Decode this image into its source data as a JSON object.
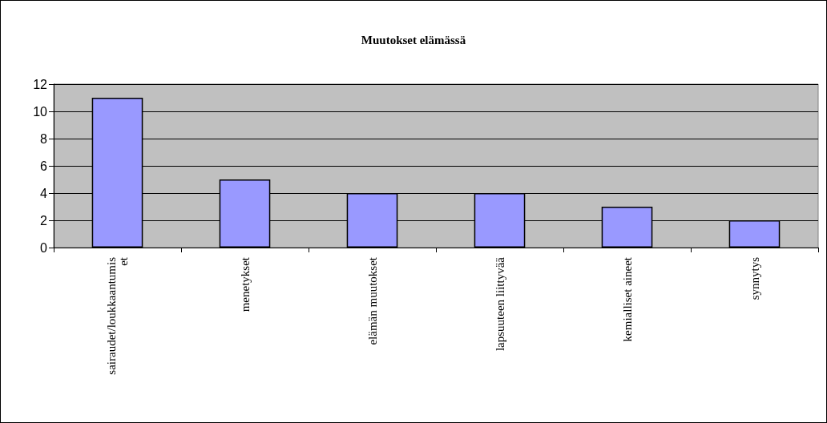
{
  "chart_data": {
    "type": "bar",
    "title": "Muutokset elämässä",
    "categories": [
      "sairaudet/loukkaantumiset",
      "menetykset",
      "elämän muutokset",
      "lapsuuteen liittyvää",
      "kemialliset aineet",
      "synnytys"
    ],
    "values": [
      11,
      5,
      4,
      4,
      3,
      2
    ],
    "color": "#9999ff",
    "ylim": [
      0,
      12
    ],
    "yticks": [
      0,
      2,
      4,
      6,
      8,
      10,
      12
    ],
    "grid": "y"
  }
}
